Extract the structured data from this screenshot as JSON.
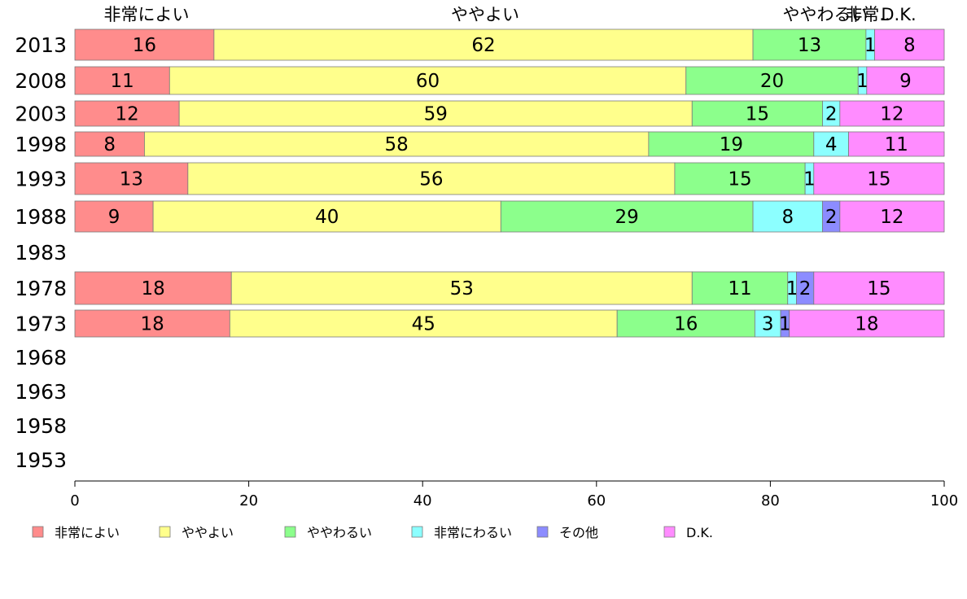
{
  "chart_data": {
    "type": "bar",
    "orientation": "horizontal",
    "stacked": true,
    "percent": true,
    "title": "",
    "xlabel": "",
    "ylabel": "",
    "xlim": [
      0,
      100
    ],
    "x_ticks": [
      0,
      20,
      40,
      60,
      80,
      100
    ],
    "grid": false,
    "legend_position": "bottom",
    "categories": [
      "2013",
      "2008",
      "2003",
      "1998",
      "1993",
      "1988",
      "1983",
      "1978",
      "1973",
      "1968",
      "1963",
      "1958",
      "1953"
    ],
    "top_labels": [
      "非常によい",
      "ややよい",
      "ややわるい",
      "非常..",
      "D.K."
    ],
    "series": [
      {
        "name": "非常によい",
        "color": "#ff8c8c",
        "values": [
          16,
          11,
          12,
          8,
          13,
          9,
          null,
          18,
          18,
          null,
          null,
          null,
          null
        ]
      },
      {
        "name": "ややよい",
        "color": "#ffff8c",
        "values": [
          62,
          60,
          59,
          58,
          56,
          40,
          null,
          53,
          45,
          null,
          null,
          null,
          null
        ]
      },
      {
        "name": "ややわるい",
        "color": "#8cff8c",
        "values": [
          13,
          20,
          15,
          19,
          15,
          29,
          null,
          11,
          16,
          null,
          null,
          null,
          null
        ]
      },
      {
        "name": "非常にわるい",
        "color": "#8cffff",
        "values": [
          1,
          1,
          2,
          4,
          1,
          8,
          null,
          1,
          3,
          null,
          null,
          null,
          null
        ]
      },
      {
        "name": "その他",
        "color": "#8c8cff",
        "values": [
          0,
          0,
          0,
          0,
          0,
          2,
          null,
          2,
          1,
          null,
          null,
          null,
          null
        ]
      },
      {
        "name": "D.K.",
        "color": "#ff8cff",
        "values": [
          8,
          9,
          12,
          11,
          15,
          12,
          null,
          15,
          18,
          null,
          null,
          null,
          null
        ]
      }
    ]
  }
}
